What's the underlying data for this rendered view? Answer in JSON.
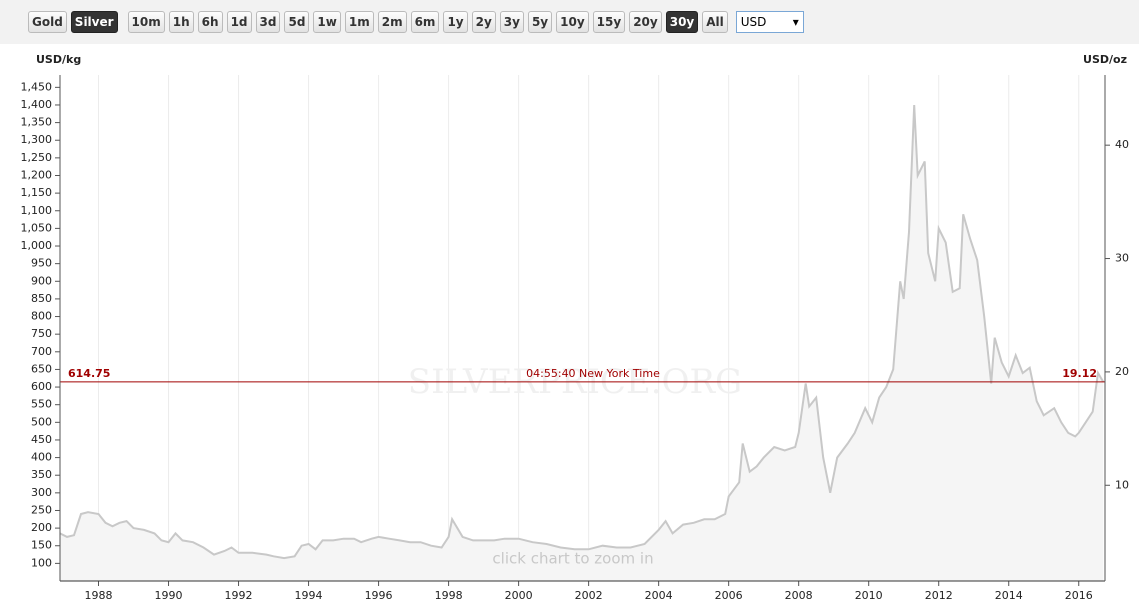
{
  "toolbar": {
    "buttons": [
      "Gold",
      "Silver",
      "10m",
      "1h",
      "6h",
      "1d",
      "3d",
      "5d",
      "1w",
      "1m",
      "2m",
      "6m",
      "1y",
      "2y",
      "3y",
      "5y",
      "10y",
      "15y",
      "20y",
      "30y",
      "All"
    ],
    "active": [
      1,
      19
    ],
    "currency": "USD"
  },
  "chart_data": {
    "type": "line",
    "y_label": "USD/kg",
    "y2_label": "USD/oz",
    "watermark": "SILVERPRICE.ORG",
    "hint": "click chart to zoom in",
    "x": [
      1986.9,
      1987.1,
      1987.3,
      1987.5,
      1987.7,
      1988.0,
      1988.2,
      1988.4,
      1988.6,
      1988.8,
      1989.0,
      1989.3,
      1989.6,
      1989.8,
      1990.0,
      1990.2,
      1990.4,
      1990.7,
      1991.0,
      1991.3,
      1991.6,
      1991.8,
      1992.0,
      1992.4,
      1992.8,
      1993.0,
      1993.3,
      1993.6,
      1993.8,
      1994.0,
      1994.2,
      1994.4,
      1994.7,
      1995.0,
      1995.3,
      1995.5,
      1995.8,
      1996.0,
      1996.3,
      1996.6,
      1996.9,
      1997.2,
      1997.5,
      1997.8,
      1998.0,
      1998.1,
      1998.4,
      1998.7,
      1999.0,
      1999.3,
      1999.6,
      2000.0,
      2000.4,
      2000.8,
      2001.2,
      2001.6,
      2002.0,
      2002.4,
      2002.8,
      2003.2,
      2003.6,
      2004.0,
      2004.2,
      2004.4,
      2004.7,
      2005.0,
      2005.3,
      2005.6,
      2005.9,
      2006.0,
      2006.3,
      2006.4,
      2006.6,
      2006.8,
      2007.0,
      2007.3,
      2007.6,
      2007.9,
      2008.0,
      2008.2,
      2008.3,
      2008.5,
      2008.7,
      2008.9,
      2009.1,
      2009.4,
      2009.6,
      2009.9,
      2010.1,
      2010.3,
      2010.5,
      2010.7,
      2010.9,
      2011.0,
      2011.15,
      2011.3,
      2011.4,
      2011.6,
      2011.7,
      2011.9,
      2012.0,
      2012.2,
      2012.4,
      2012.6,
      2012.7,
      2012.9,
      2013.1,
      2013.3,
      2013.5,
      2013.6,
      2013.8,
      2014.0,
      2014.2,
      2014.4,
      2014.6,
      2014.8,
      2015.0,
      2015.3,
      2015.5,
      2015.7,
      2015.9,
      2016.0,
      2016.2,
      2016.4,
      2016.55,
      2016.7
    ],
    "series": [
      {
        "color": "#c8c8c8",
        "values": [
          185,
          175,
          180,
          240,
          245,
          240,
          215,
          205,
          215,
          220,
          200,
          195,
          185,
          165,
          160,
          185,
          165,
          160,
          145,
          125,
          135,
          145,
          130,
          130,
          125,
          120,
          115,
          120,
          150,
          155,
          140,
          165,
          165,
          170,
          170,
          160,
          170,
          175,
          170,
          165,
          160,
          160,
          150,
          145,
          175,
          225,
          175,
          165,
          165,
          165,
          170,
          170,
          160,
          155,
          145,
          140,
          140,
          150,
          145,
          145,
          155,
          195,
          220,
          185,
          210,
          215,
          225,
          225,
          240,
          290,
          330,
          440,
          360,
          375,
          400,
          430,
          420,
          430,
          470,
          610,
          545,
          570,
          400,
          300,
          400,
          440,
          470,
          540,
          500,
          570,
          600,
          650,
          900,
          850,
          1040,
          1400,
          1200,
          1240,
          980,
          900,
          1050,
          1010,
          870,
          880,
          1090,
          1020,
          960,
          800,
          610,
          740,
          670,
          630,
          690,
          640,
          655,
          560,
          520,
          540,
          500,
          470,
          460,
          470,
          500,
          530,
          640,
          615
        ]
      }
    ],
    "current": {
      "value": 614.75,
      "value_y2": 19.12,
      "label": "04:55:40 New York Time",
      "color": "#a00000"
    },
    "xlim": [
      1986.9,
      2016.75
    ],
    "xticks": [
      1988,
      1990,
      1992,
      1994,
      1996,
      1998,
      2000,
      2002,
      2004,
      2006,
      2008,
      2010,
      2012,
      2014,
      2016
    ],
    "ylim": [
      50,
      1485
    ],
    "yticks": [
      100,
      150,
      200,
      250,
      300,
      350,
      400,
      450,
      500,
      550,
      600,
      650,
      700,
      750,
      800,
      850,
      900,
      950,
      {
        "value": 1000,
        "label": "1,000"
      },
      {
        "value": 1050,
        "label": "1,050"
      },
      {
        "value": 1100,
        "label": "1,100"
      },
      {
        "value": 1150,
        "label": "1,150"
      },
      {
        "value": 1200,
        "label": "1,200"
      },
      {
        "value": 1250,
        "label": "1,250"
      },
      {
        "value": 1300,
        "label": "1,300"
      },
      {
        "value": 1350,
        "label": "1,350"
      },
      {
        "value": 1400,
        "label": "1,400"
      },
      {
        "value": 1450,
        "label": "1,450"
      }
    ],
    "y2lim": [
      1.555,
      46.19
    ],
    "y2ticks": [
      10,
      20,
      30,
      40
    ],
    "grid": "x"
  }
}
